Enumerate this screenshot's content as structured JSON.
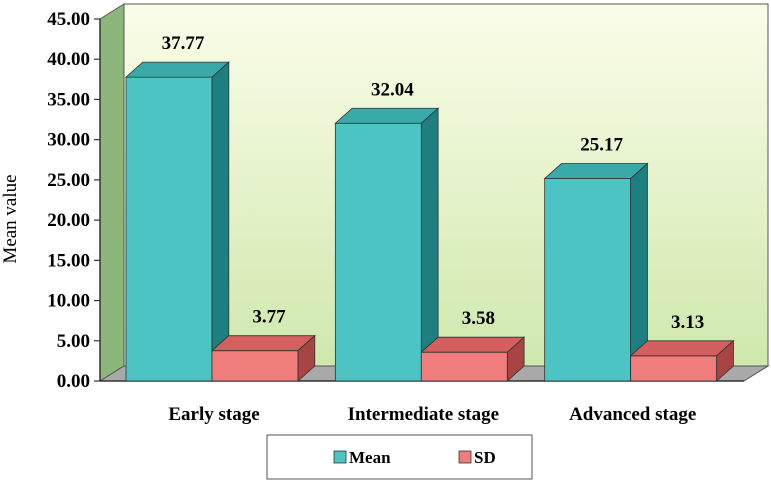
{
  "chart_data": {
    "type": "bar",
    "categories": [
      "Early stage",
      "Intermediate stage",
      "Advanced stage"
    ],
    "series": [
      {
        "name": "Mean",
        "values": [
          37.77,
          32.04,
          25.17
        ],
        "labels": [
          "37.77",
          "32.04",
          "25.17"
        ]
      },
      {
        "name": "SD",
        "values": [
          3.77,
          3.58,
          3.13
        ],
        "labels": [
          "3.77",
          "3.58",
          "3.13"
        ]
      }
    ],
    "ylabel": "Mean value",
    "ylim": [
      0,
      45
    ],
    "yticks": [
      "0.00",
      "5.00",
      "10.00",
      "15.00",
      "20.00",
      "25.00",
      "30.00",
      "35.00",
      "40.00",
      "45.00"
    ],
    "grid": false,
    "legend_position": "bottom",
    "three_d": true
  },
  "colors": {
    "mean_front": "#4cc4c4",
    "mean_top": "#3aa9a9",
    "mean_side": "#1e7f80",
    "sd_front": "#f07c7c",
    "sd_top": "#d35f5f",
    "sd_side": "#a84444",
    "wall_top": "#fbfde9",
    "wall_bottom": "#cfe8ad",
    "side_wall": "#8db77a",
    "floor": "#a9a9a9"
  }
}
